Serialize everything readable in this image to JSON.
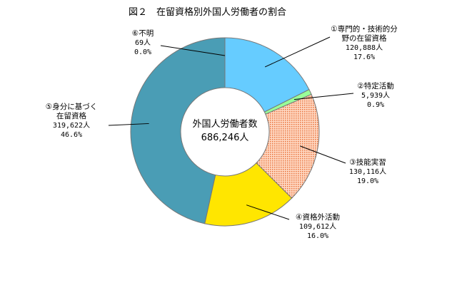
{
  "chart_data": {
    "type": "pie",
    "variant": "donut",
    "title": "図２　在留資格別外国人労働者の割合",
    "center_text": [
      "外国人労働者数",
      "686,246人"
    ],
    "start_angle_deg": 0,
    "direction": "clockwise",
    "slices": [
      {
        "id": "s1",
        "label_lines": [
          "①専門的・技術的分",
          "野の在留資格"
        ],
        "count": "120,888人",
        "percent": "17.6%",
        "value": 17.6,
        "color": "#66ccff",
        "pattern": "none"
      },
      {
        "id": "s2",
        "label_lines": [
          "②特定活動"
        ],
        "count": "5,939人",
        "percent": "0.9%",
        "value": 0.9,
        "color": "#99ff99",
        "pattern": "none"
      },
      {
        "id": "s3",
        "label_lines": [
          "③技能実習"
        ],
        "count": "130,116人",
        "percent": "19.0%",
        "value": 19.0,
        "color": "#ff9966",
        "pattern": "dots"
      },
      {
        "id": "s4",
        "label_lines": [
          "④資格外活動"
        ],
        "count": "109,612人",
        "percent": "16.0%",
        "value": 16.0,
        "color": "#ffe600",
        "pattern": "none"
      },
      {
        "id": "s5",
        "label_lines": [
          "⑤身分に基づく",
          "在留資格"
        ],
        "count": "319,622人",
        "percent": "46.6%",
        "value": 46.6,
        "color": "#4a9db5",
        "pattern": "none"
      },
      {
        "id": "s6",
        "label_lines": [
          "⑥不明"
        ],
        "count": "69人",
        "percent": "0.0%",
        "value": 0.0,
        "color": "#cccccc",
        "pattern": "none"
      }
    ]
  }
}
